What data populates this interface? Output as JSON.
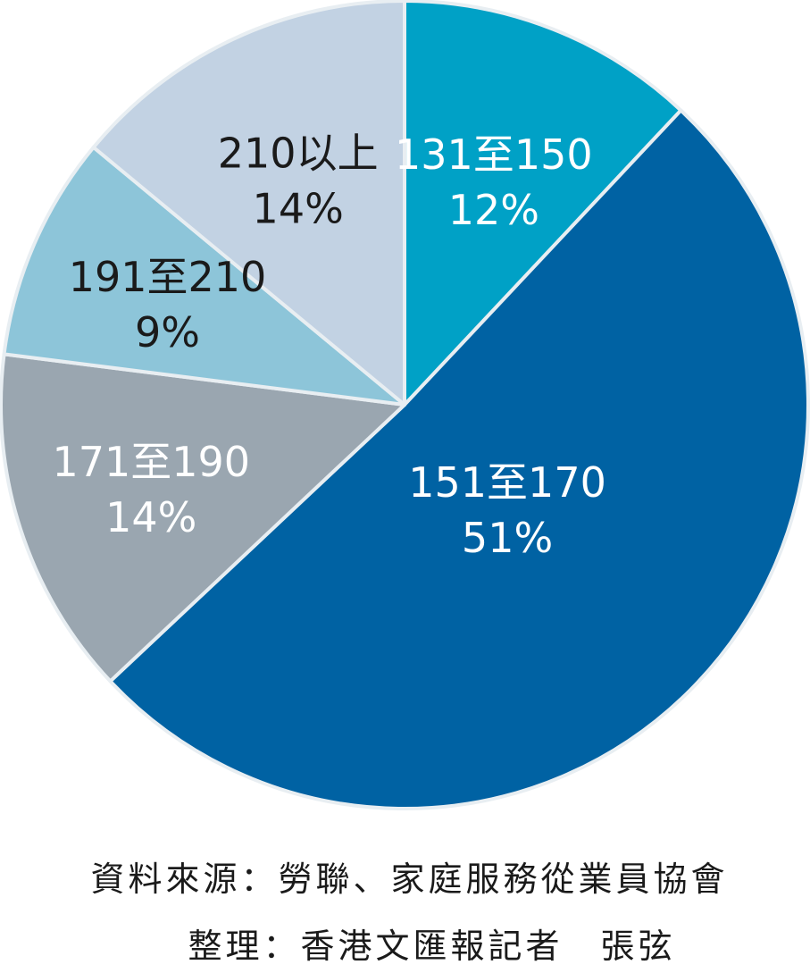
{
  "chart_data": {
    "type": "pie",
    "start_angle_deg": 0,
    "direction": "clockwise",
    "slices": [
      {
        "label": "131至150",
        "percent_label": "12%",
        "value": 12,
        "color": "#00a1c6",
        "text_color": "#ffffff"
      },
      {
        "label": "151至170",
        "percent_label": "51%",
        "value": 51,
        "color": "#0062a3",
        "text_color": "#ffffff"
      },
      {
        "label": "171至190",
        "percent_label": "14%",
        "value": 14,
        "color": "#9aa6b0",
        "text_color": "#ffffff"
      },
      {
        "label": "191至210",
        "percent_label": "9%",
        "value": 9,
        "color": "#8dc5d9",
        "text_color": "#1a1a1a"
      },
      {
        "label": "210以上",
        "percent_label": "14%",
        "value": 14,
        "color": "#c2d2e3",
        "text_color": "#1a1a1a"
      }
    ],
    "legend": "none"
  },
  "footer": {
    "source": "資料來源：勞聯、家庭服務從業員協會",
    "credit": "整理：香港文匯報記者　張弦"
  }
}
